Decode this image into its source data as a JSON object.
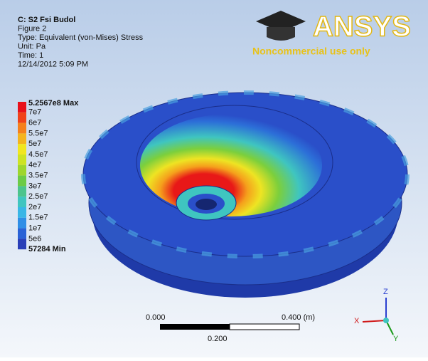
{
  "header": {
    "lines": [
      "C: S2 Fsi Budol",
      "Figure 2",
      "Type: Equivalent (von-Mises) Stress",
      "Unit: Pa",
      "Time: 1",
      "12/14/2012 5:09 PM"
    ]
  },
  "logo": {
    "name": "ANSYS",
    "note": "Noncommercial use only"
  },
  "legend": {
    "labels": [
      "5.2567e8 Max",
      "7e7",
      "6e7",
      "5.5e7",
      "5e7",
      "4.5e7",
      "4e7",
      "3.5e7",
      "3e7",
      "2.5e7",
      "2e7",
      "1.5e7",
      "1e7",
      "5e6",
      "57284 Min"
    ],
    "colors": [
      "#e8101a",
      "#f0421a",
      "#f5801c",
      "#f4b41e",
      "#f1e61f",
      "#cde323",
      "#9ed62d",
      "#6ccb47",
      "#4cc48d",
      "#3fc5c0",
      "#39b6e6",
      "#2f8ee6",
      "#2a62d6",
      "#2a3fb8"
    ]
  },
  "scale_bar": {
    "start": "0.000",
    "end": "0.400 (m)",
    "mid": "0.200"
  },
  "triad": {
    "x": "X",
    "y": "Y",
    "z": "Z"
  }
}
